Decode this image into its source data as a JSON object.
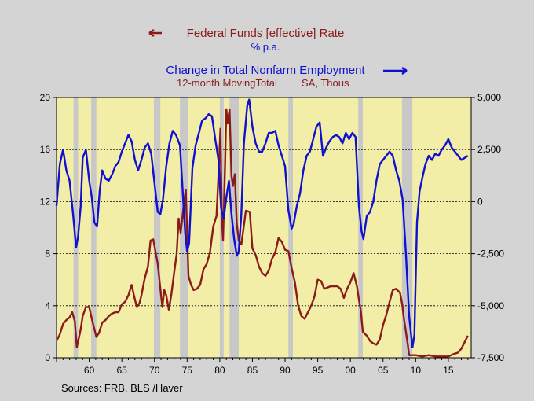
{
  "chart_data": {
    "type": "line",
    "left_title": "Federal Funds [effective] Rate",
    "left_unit": "% p.a.",
    "right_title": "Change in Total Nonfarm Employment",
    "right_unit": "12-month MovingTotal",
    "right_unit2": "SA, Thous",
    "source": "Sources:  FRB, BLS /Haver",
    "xlim": [
      1955,
      2018.5
    ],
    "ylim_left": [
      0,
      20
    ],
    "ylim_right": [
      -7500,
      5000
    ],
    "x_ticks": [
      {
        "value": 1960,
        "label": "60"
      },
      {
        "value": 1965,
        "label": "65"
      },
      {
        "value": 1970,
        "label": "70"
      },
      {
        "value": 1975,
        "label": "75"
      },
      {
        "value": 1980,
        "label": "80"
      },
      {
        "value": 1985,
        "label": "85"
      },
      {
        "value": 1990,
        "label": "90"
      },
      {
        "value": 1995,
        "label": "95"
      },
      {
        "value": 2000,
        "label": "00"
      },
      {
        "value": 2005,
        "label": "05"
      },
      {
        "value": 2010,
        "label": "10"
      },
      {
        "value": 2015,
        "label": "15"
      }
    ],
    "left_ticks": [
      {
        "value": 0,
        "label": "0"
      },
      {
        "value": 4,
        "label": "4"
      },
      {
        "value": 8,
        "label": "8"
      },
      {
        "value": 12,
        "label": "12"
      },
      {
        "value": 16,
        "label": "16"
      },
      {
        "value": 20,
        "label": "20"
      }
    ],
    "right_ticks": [
      {
        "value": 5000,
        "label": "5,000"
      },
      {
        "value": 2500,
        "label": "2,500"
      },
      {
        "value": 0,
        "label": "0"
      },
      {
        "value": -2500,
        "label": "-2,500"
      },
      {
        "value": -5000,
        "label": "-5,000"
      },
      {
        "value": -7500,
        "label": "-7,500"
      }
    ],
    "grid_left_values": [
      4,
      8,
      12,
      16
    ],
    "recessions": [
      [
        1957.6,
        1958.3
      ],
      [
        1960.3,
        1961.1
      ],
      [
        1969.9,
        1970.9
      ],
      [
        1973.9,
        1975.2
      ],
      [
        1980.0,
        1980.6
      ],
      [
        1981.5,
        1982.9
      ],
      [
        1990.5,
        1991.2
      ],
      [
        2001.2,
        2001.9
      ],
      [
        2007.9,
        2009.5
      ]
    ],
    "colors": {
      "plot_bg": "#f2eea8",
      "recession": "#c8c8c8",
      "fed_funds": "#8b1a1a",
      "employment": "#1010d0"
    },
    "series": [
      {
        "name": "Federal Funds [effective] Rate",
        "axis": "left",
        "x": [
          1955.0,
          1955.5,
          1956.0,
          1956.5,
          1957.0,
          1957.4,
          1957.8,
          1958.1,
          1958.4,
          1958.7,
          1959.0,
          1959.5,
          1960.0,
          1960.4,
          1960.8,
          1961.1,
          1961.5,
          1962.0,
          1962.5,
          1963.0,
          1963.5,
          1964.0,
          1964.5,
          1965.0,
          1965.5,
          1966.0,
          1966.5,
          1966.9,
          1967.3,
          1967.7,
          1968.0,
          1968.5,
          1969.0,
          1969.4,
          1969.8,
          1970.1,
          1970.5,
          1970.9,
          1971.2,
          1971.5,
          1971.8,
          1972.2,
          1972.6,
          1973.0,
          1973.4,
          1973.7,
          1974.0,
          1974.5,
          1974.8,
          1975.2,
          1975.6,
          1976.0,
          1976.5,
          1977.0,
          1977.5,
          1978.0,
          1978.5,
          1979.0,
          1979.5,
          1979.8,
          1980.1,
          1980.3,
          1980.5,
          1980.8,
          1981.0,
          1981.2,
          1981.5,
          1981.8,
          1982.0,
          1982.3,
          1982.6,
          1982.9,
          1983.3,
          1984.0,
          1984.6,
          1985.0,
          1985.5,
          1986.0,
          1986.5,
          1987.0,
          1987.5,
          1988.0,
          1988.5,
          1989.0,
          1989.5,
          1990.0,
          1990.5,
          1991.0,
          1991.5,
          1992.0,
          1992.5,
          1993.0,
          1994.0,
          1994.5,
          1995.0,
          1995.5,
          1996.0,
          1997.0,
          1998.0,
          1998.5,
          1999.0,
          1999.5,
          2000.0,
          2000.5,
          2001.0,
          2001.3,
          2001.6,
          2001.9,
          2002.5,
          2003.0,
          2003.5,
          2004.0,
          2004.5,
          2005.0,
          2005.5,
          2006.0,
          2006.5,
          2007.0,
          2007.6,
          2007.9,
          2008.2,
          2008.5,
          2008.8,
          2009.0,
          2010.0,
          2011.0,
          2012.0,
          2013.0,
          2014.0,
          2015.0,
          2015.9,
          2016.5,
          2017.0,
          2017.5,
          2018.0
        ],
        "values": [
          1.3,
          1.8,
          2.6,
          2.9,
          3.1,
          3.5,
          2.8,
          0.8,
          1.5,
          2.2,
          3.2,
          3.9,
          3.9,
          3.0,
          2.2,
          1.6,
          1.9,
          2.7,
          2.9,
          3.2,
          3.4,
          3.5,
          3.5,
          4.1,
          4.3,
          4.8,
          5.6,
          4.7,
          3.9,
          4.2,
          4.8,
          6.1,
          7.0,
          9.0,
          9.1,
          8.3,
          7.2,
          5.3,
          3.9,
          5.2,
          4.8,
          3.7,
          4.9,
          6.5,
          8.0,
          10.7,
          9.6,
          11.8,
          12.9,
          6.3,
          5.6,
          5.2,
          5.3,
          5.6,
          6.8,
          7.2,
          8.1,
          10.1,
          10.9,
          14.0,
          17.6,
          11.0,
          9.0,
          14.6,
          19.1,
          18.0,
          19.1,
          14.0,
          13.2,
          14.1,
          10.3,
          9.0,
          8.7,
          11.3,
          11.2,
          8.4,
          7.9,
          7.0,
          6.5,
          6.3,
          6.7,
          7.6,
          8.1,
          9.2,
          8.9,
          8.3,
          8.2,
          6.9,
          5.8,
          4.0,
          3.2,
          3.0,
          4.0,
          4.7,
          6.0,
          5.9,
          5.3,
          5.5,
          5.5,
          5.3,
          4.6,
          5.3,
          5.8,
          6.5,
          5.5,
          4.5,
          3.6,
          2.0,
          1.7,
          1.3,
          1.1,
          1.0,
          1.4,
          2.5,
          3.3,
          4.3,
          5.2,
          5.3,
          5.0,
          4.2,
          3.0,
          2.0,
          1.0,
          0.2,
          0.2,
          0.1,
          0.2,
          0.1,
          0.1,
          0.1,
          0.3,
          0.4,
          0.7,
          1.2,
          1.7
        ]
      },
      {
        "name": "Change in Total Nonfarm Employment",
        "axis": "right",
        "x": [
          1955.0,
          1955.5,
          1956.0,
          1956.5,
          1957.0,
          1957.5,
          1958.0,
          1958.3,
          1958.7,
          1959.0,
          1959.5,
          1960.0,
          1960.4,
          1960.8,
          1961.2,
          1961.6,
          1962.0,
          1962.5,
          1963.0,
          1963.5,
          1964.0,
          1964.5,
          1965.0,
          1965.5,
          1966.0,
          1966.5,
          1967.0,
          1967.5,
          1968.0,
          1968.5,
          1969.0,
          1969.5,
          1970.0,
          1970.5,
          1970.9,
          1971.3,
          1971.8,
          1972.3,
          1972.8,
          1973.3,
          1973.9,
          1974.3,
          1974.7,
          1975.0,
          1975.3,
          1975.8,
          1976.3,
          1976.8,
          1977.3,
          1977.8,
          1978.3,
          1978.8,
          1979.3,
          1979.8,
          1980.2,
          1980.6,
          1981.0,
          1981.4,
          1981.8,
          1982.2,
          1982.6,
          1982.9,
          1983.3,
          1983.7,
          1984.2,
          1984.5,
          1985.0,
          1985.5,
          1986.0,
          1986.5,
          1987.0,
          1987.5,
          1988.0,
          1988.5,
          1989.0,
          1989.5,
          1990.0,
          1990.5,
          1991.0,
          1991.3,
          1991.8,
          1992.3,
          1992.8,
          1993.3,
          1993.8,
          1994.3,
          1994.8,
          1995.3,
          1995.8,
          1996.3,
          1996.8,
          1997.3,
          1997.8,
          1998.3,
          1998.8,
          1999.3,
          1999.8,
          2000.3,
          2000.8,
          2001.3,
          2001.7,
          2002.0,
          2002.5,
          2003.0,
          2003.5,
          2004.0,
          2004.5,
          2005.0,
          2005.5,
          2006.0,
          2006.5,
          2007.0,
          2007.5,
          2008.0,
          2008.5,
          2009.0,
          2009.5,
          2009.8,
          2010.2,
          2010.6,
          2011.0,
          2011.5,
          2012.0,
          2012.5,
          2013.0,
          2013.5,
          2014.0,
          2014.5,
          2015.0,
          2015.5,
          2016.0,
          2016.5,
          2017.0,
          2017.5,
          2018.0
        ],
        "values": [
          -200,
          1800,
          2500,
          1500,
          1000,
          -500,
          -2200,
          -1700,
          -200,
          2100,
          2500,
          1000,
          200,
          -1000,
          -1200,
          500,
          1500,
          1100,
          1000,
          1300,
          1700,
          1900,
          2400,
          2800,
          3200,
          2900,
          2000,
          1500,
          2000,
          2600,
          2800,
          2300,
          900,
          -500,
          -600,
          100,
          1700,
          2800,
          3400,
          3200,
          2700,
          600,
          -1500,
          -2400,
          -2000,
          1600,
          2700,
          3300,
          3900,
          4000,
          4200,
          4100,
          3000,
          2000,
          -300,
          -800,
          200,
          1000,
          -600,
          -1800,
          -2600,
          -2400,
          -600,
          2800,
          4600,
          4900,
          3600,
          2800,
          2400,
          2400,
          2800,
          3300,
          3300,
          3400,
          2700,
          2200,
          1700,
          -400,
          -1300,
          -1100,
          -200,
          400,
          1500,
          2200,
          2400,
          3000,
          3600,
          3800,
          2200,
          2600,
          2900,
          3100,
          3200,
          3100,
          2800,
          3300,
          3000,
          3300,
          3100,
          -200,
          -1400,
          -1800,
          -700,
          -500,
          0,
          1000,
          1800,
          2000,
          2200,
          2400,
          2200,
          1500,
          1000,
          100,
          -2500,
          -5500,
          -7000,
          -6400,
          -1000,
          500,
          1100,
          1800,
          2200,
          2000,
          2300,
          2200,
          2500,
          2700,
          3000,
          2600,
          2400,
          2200,
          2000,
          2100,
          2200
        ]
      }
    ]
  }
}
